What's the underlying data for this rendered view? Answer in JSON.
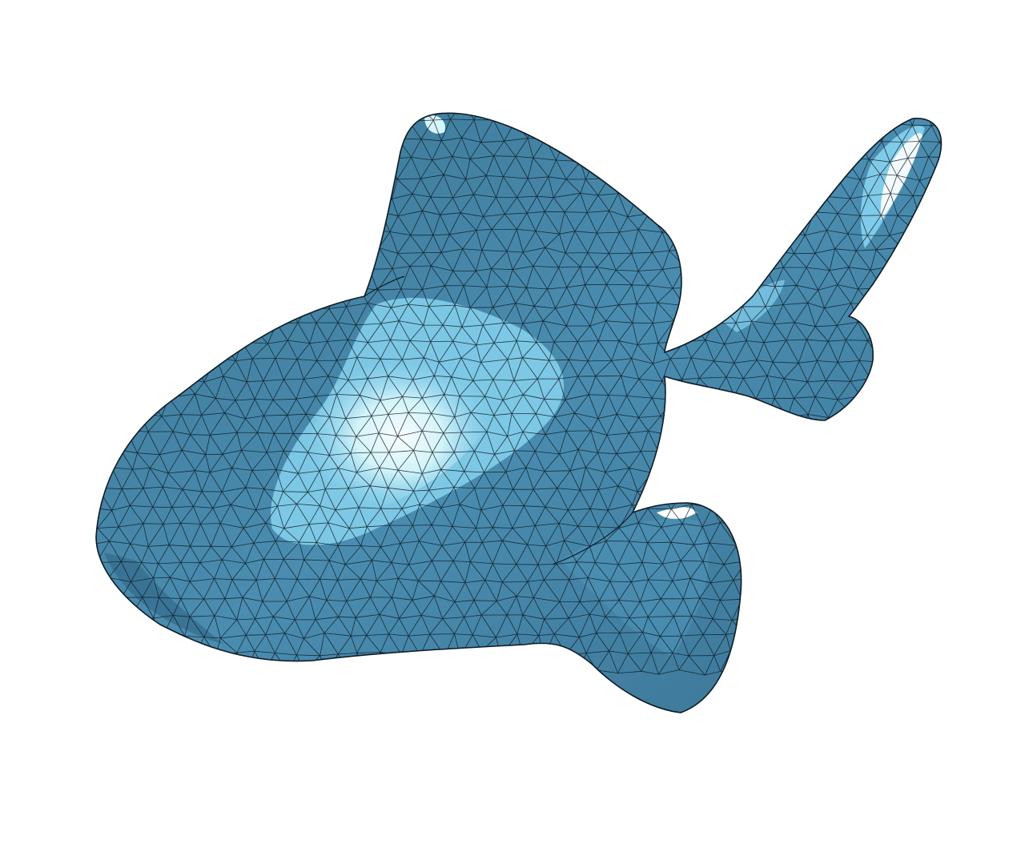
{
  "figure": {
    "subject": "triangulated-mesh-surface",
    "colors": {
      "background": "#ffffff",
      "base": "#3f7fa2",
      "mid": "#4e95b9",
      "light": "#86d2ef",
      "highlight": "#d7f6fb",
      "specular": "#ffffff",
      "edge": "#0d1b24"
    }
  }
}
